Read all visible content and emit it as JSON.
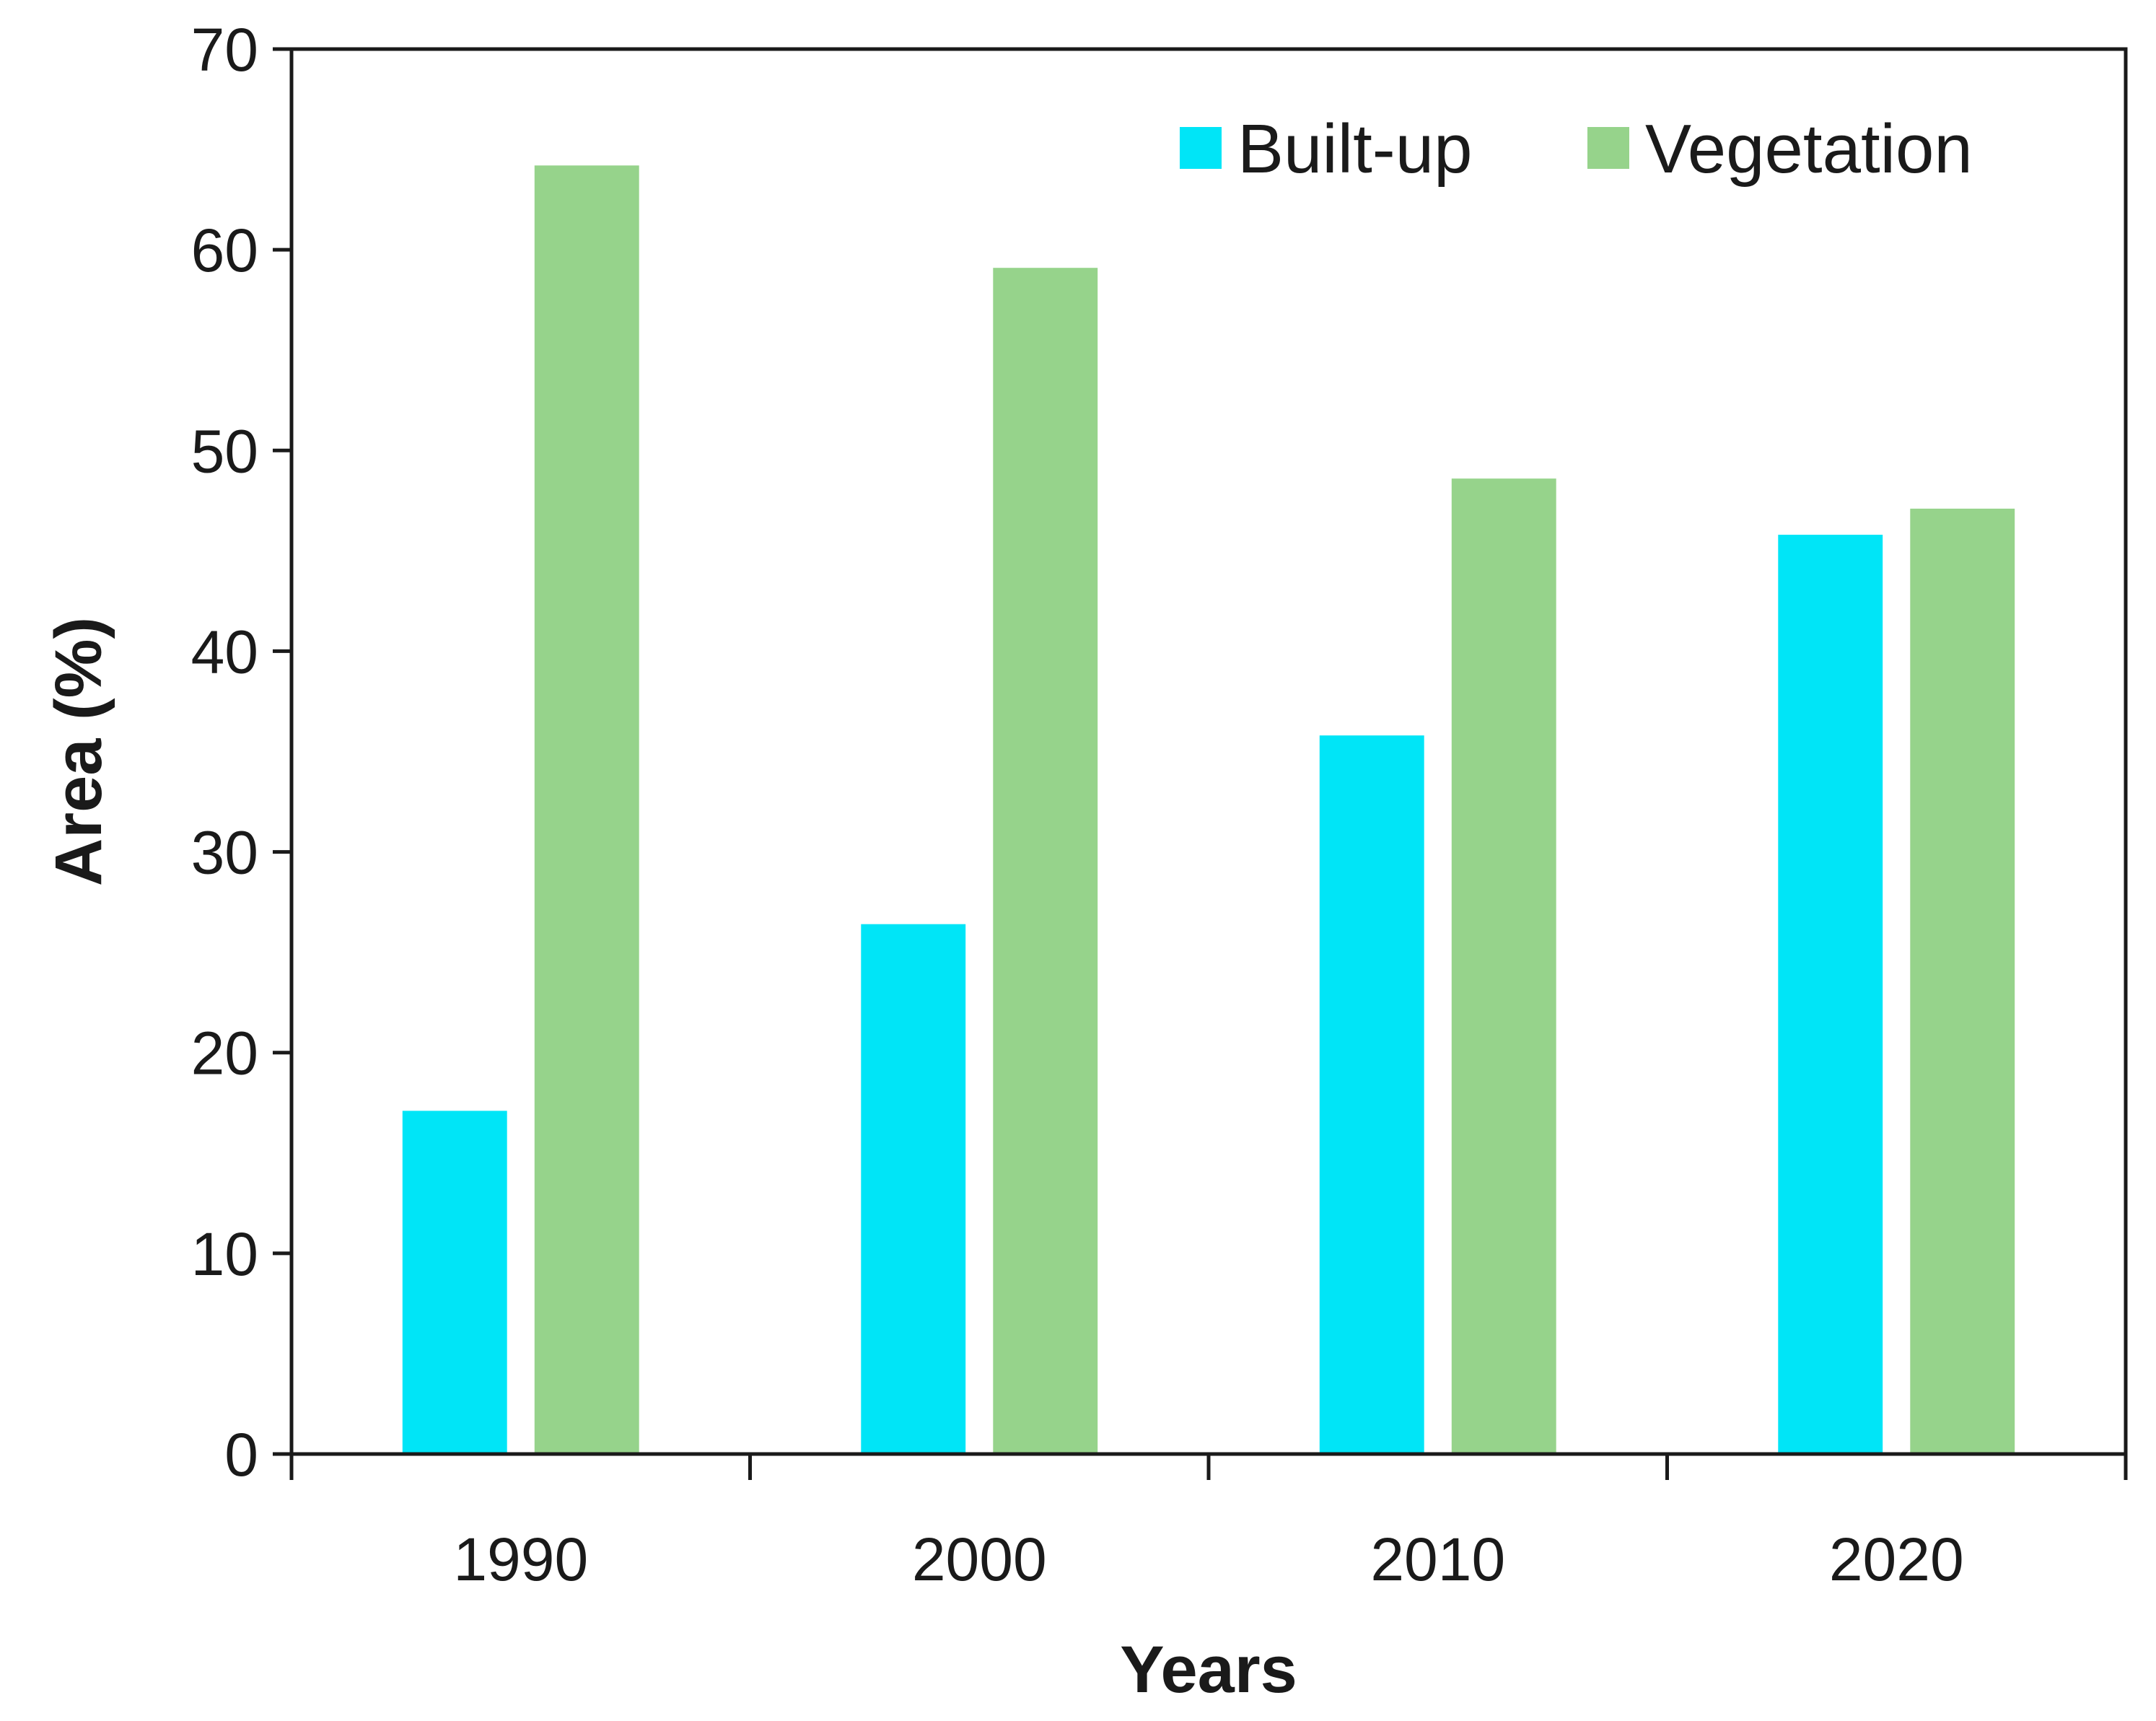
{
  "chart_data": {
    "type": "bar",
    "title": "",
    "xlabel": "Years",
    "ylabel": "Area (%)",
    "categories": [
      "1990",
      "2000",
      "2010",
      "2020"
    ],
    "series": [
      {
        "name": "Built-up",
        "color": "#00e5f7",
        "values": [
          17.1,
          26.4,
          35.8,
          45.8
        ]
      },
      {
        "name": "Vegetation",
        "color": "#96d38b",
        "values": [
          64.2,
          59.1,
          48.6,
          47.1
        ]
      }
    ],
    "ylim": [
      0,
      70
    ],
    "yticks": [
      0,
      10,
      20,
      30,
      40,
      50,
      60,
      70
    ],
    "ytick_labels": [
      "0",
      "10",
      "20",
      "30",
      "40",
      "50",
      "60",
      "70"
    ],
    "grid": false,
    "legend_position": "top-right",
    "axis_color": "#1a1a1a"
  }
}
